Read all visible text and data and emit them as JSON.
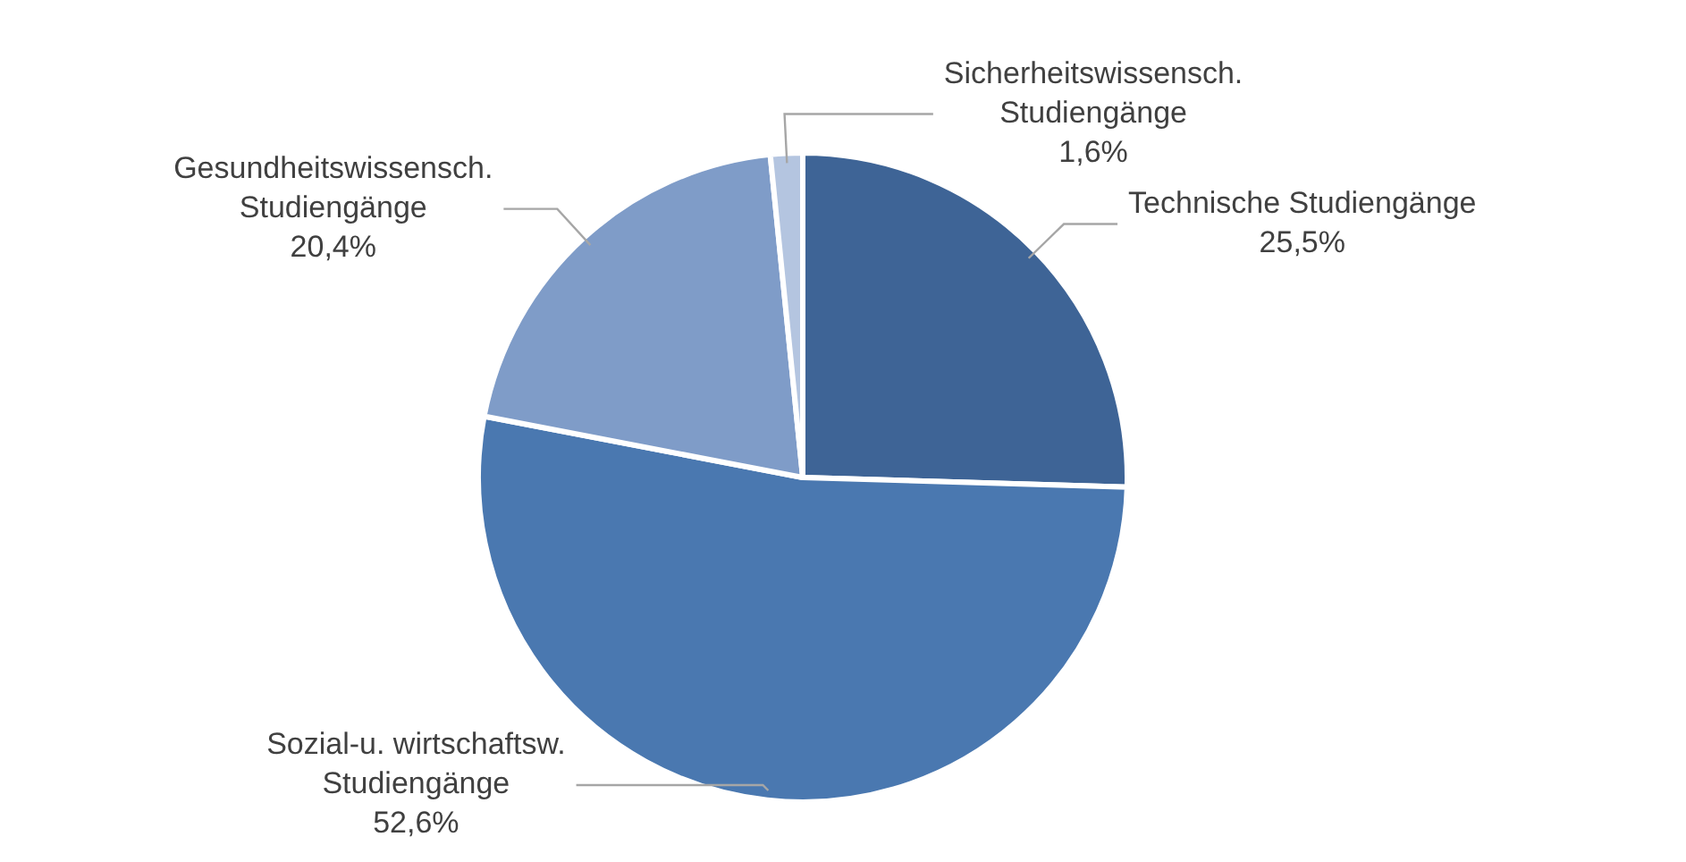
{
  "chart_data": {
    "type": "pie",
    "categories": [
      "Technische Studiengänge",
      "Sozial-u. wirtschaftsw. Studiengänge",
      "Gesundheitswissensch. Studiengänge",
      "Sicherheitswissensch. Studiengänge"
    ],
    "values": [
      25.5,
      52.6,
      20.4,
      1.6
    ],
    "colors": [
      "#3e6496",
      "#4a78b0",
      "#7f9cc8",
      "#b4c5e0"
    ],
    "value_labels": [
      "25,5%",
      "52,6%",
      "20,4%",
      "1,6%"
    ],
    "legend": false
  }
}
